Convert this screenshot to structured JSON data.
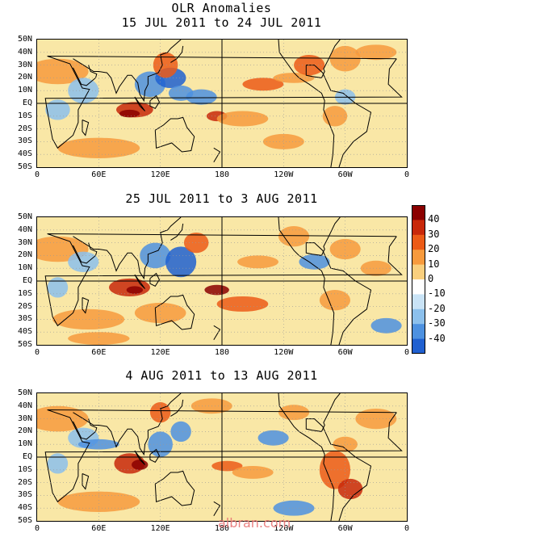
{
  "main_title": "OLR Anomalies",
  "panels": [
    {
      "title": "15 JUL 2011 to 24 JUL 2011"
    },
    {
      "title": "25 JUL 2011 to 3 AUG 2011"
    },
    {
      "title": "4 AUG 2011 to 13 AUG 2011"
    }
  ],
  "lat_labels": [
    "50N",
    "40N",
    "30N",
    "20N",
    "10N",
    "EQ",
    "10S",
    "20S",
    "30S",
    "40S",
    "50S"
  ],
  "lon_labels": [
    "0",
    "60E",
    "120E",
    "180",
    "120W",
    "60W",
    "0"
  ],
  "colorbar": {
    "labels": [
      "40",
      "30",
      "20",
      "10",
      "0",
      "-10",
      "-20",
      "-30",
      "-40"
    ],
    "colors": [
      "#8b0000",
      "#c8280a",
      "#ec5b17",
      "#f79a3d",
      "#f9cf7e",
      "#ffffff",
      "#c9e3f6",
      "#8cc0ec",
      "#4d91e0",
      "#2060d0"
    ]
  },
  "watermark": "albran.com"
}
